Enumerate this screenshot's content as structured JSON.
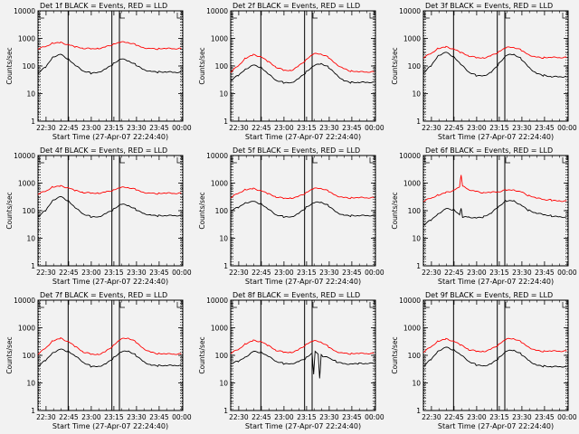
{
  "figure": {
    "title_template": "Det {det}f BLACK = Events, RED = LLD",
    "xlabel": "Start Time (27-Apr-07 22:24:40)",
    "ylabel": "Counts/sec",
    "yticks": [
      "10000",
      "1000",
      "100",
      "10",
      "1"
    ],
    "xticks": [
      "22:30",
      "22:45",
      "23:00",
      "23:15",
      "23:30",
      "23:45",
      "00:00"
    ],
    "colors": {
      "events": "#000000",
      "lld": "#ff0000",
      "background": "#f2f2f2"
    }
  },
  "chart_data": [
    {
      "type": "line",
      "detector": "1",
      "title": "Det 1f BLACK = Events, RED = LLD",
      "xlabel": "Start Time (27-Apr-07 22:24:40)",
      "ylabel": "Counts/sec",
      "yscale": "log",
      "ylim": [
        1,
        10000
      ],
      "xlim_minutes_after_22_24_40": [
        0,
        96
      ],
      "vertical_markers_minutes": [
        20,
        49,
        54
      ],
      "series": [
        {
          "name": "Events",
          "color": "#000000",
          "x": [
            0,
            5,
            10,
            15,
            20,
            25,
            30,
            35,
            40,
            45,
            50,
            55,
            60,
            65,
            70,
            75,
            80,
            85,
            90,
            95
          ],
          "y": [
            55,
            90,
            220,
            270,
            180,
            100,
            65,
            55,
            60,
            80,
            120,
            180,
            150,
            110,
            75,
            65,
            60,
            60,
            58,
            58
          ]
        },
        {
          "name": "LLD",
          "color": "#ff0000",
          "x": [
            0,
            5,
            10,
            15,
            20,
            25,
            30,
            35,
            40,
            45,
            50,
            55,
            60,
            65,
            70,
            75,
            80,
            85,
            90,
            95
          ],
          "y": [
            420,
            500,
            700,
            720,
            600,
            480,
            430,
            420,
            440,
            500,
            620,
            720,
            700,
            580,
            470,
            430,
            420,
            420,
            420,
            420
          ]
        }
      ]
    },
    {
      "type": "line",
      "detector": "2",
      "title": "Det 2f BLACK = Events, RED = LLD",
      "xlabel": "Start Time (27-Apr-07 22:24:40)",
      "ylabel": "Counts/sec",
      "yscale": "log",
      "ylim": [
        1,
        10000
      ],
      "xlim_minutes_after_22_24_40": [
        0,
        96
      ],
      "vertical_markers_minutes": [
        20,
        49,
        54
      ],
      "series": [
        {
          "name": "Events",
          "color": "#000000",
          "x": [
            0,
            5,
            10,
            15,
            20,
            25,
            30,
            35,
            40,
            45,
            50,
            55,
            60,
            65,
            70,
            75,
            80,
            85,
            90,
            95
          ],
          "y": [
            30,
            45,
            80,
            110,
            90,
            50,
            30,
            25,
            25,
            35,
            60,
            100,
            120,
            90,
            50,
            30,
            25,
            25,
            25,
            25
          ]
        },
        {
          "name": "LLD",
          "color": "#ff0000",
          "x": [
            0,
            5,
            10,
            15,
            20,
            25,
            30,
            35,
            40,
            45,
            50,
            55,
            60,
            65,
            70,
            75,
            80,
            85,
            90,
            95
          ],
          "y": [
            60,
            100,
            200,
            260,
            220,
            140,
            90,
            70,
            70,
            100,
            170,
            270,
            270,
            200,
            120,
            80,
            65,
            60,
            60,
            60
          ]
        }
      ]
    },
    {
      "type": "line",
      "detector": "3",
      "title": "Det 3f BLACK = Events, RED = LLD",
      "xlabel": "Start Time (27-Apr-07 22:24:40)",
      "ylabel": "Counts/sec",
      "yscale": "log",
      "ylim": [
        1,
        10000
      ],
      "xlim_minutes_after_22_24_40": [
        0,
        96
      ],
      "vertical_markers_minutes": [
        20,
        49,
        54
      ],
      "series": [
        {
          "name": "Events",
          "color": "#000000",
          "x": [
            0,
            5,
            10,
            15,
            20,
            25,
            30,
            35,
            40,
            45,
            50,
            55,
            60,
            65,
            70,
            75,
            80,
            85,
            90,
            95
          ],
          "y": [
            55,
            100,
            250,
            320,
            220,
            110,
            60,
            45,
            45,
            60,
            120,
            240,
            260,
            180,
            90,
            55,
            45,
            40,
            40,
            40
          ]
        },
        {
          "name": "LLD",
          "color": "#ff0000",
          "x": [
            0,
            5,
            10,
            15,
            20,
            25,
            30,
            35,
            40,
            45,
            50,
            55,
            60,
            65,
            70,
            75,
            80,
            85,
            90,
            95
          ],
          "y": [
            200,
            280,
            450,
            500,
            420,
            300,
            230,
            200,
            200,
            240,
            330,
            460,
            470,
            370,
            260,
            210,
            200,
            200,
            200,
            200
          ]
        }
      ]
    },
    {
      "type": "line",
      "detector": "4",
      "title": "Det 4f BLACK = Events, RED = LLD",
      "xlabel": "Start Time (27-Apr-07 22:24:40)",
      "ylabel": "Counts/sec",
      "yscale": "log",
      "ylim": [
        1,
        10000
      ],
      "xlim_minutes_after_22_24_40": [
        0,
        96
      ],
      "vertical_markers_minutes": [
        20,
        49,
        54
      ],
      "series": [
        {
          "name": "Events",
          "color": "#000000",
          "x": [
            0,
            5,
            10,
            15,
            20,
            25,
            30,
            35,
            40,
            45,
            50,
            55,
            60,
            65,
            70,
            75,
            80,
            85,
            90,
            95
          ],
          "y": [
            60,
            100,
            250,
            330,
            230,
            120,
            75,
            60,
            60,
            80,
            110,
            170,
            150,
            110,
            80,
            70,
            65,
            65,
            65,
            65
          ]
        },
        {
          "name": "LLD",
          "color": "#ff0000",
          "x": [
            0,
            5,
            10,
            15,
            20,
            25,
            30,
            35,
            40,
            45,
            50,
            55,
            60,
            65,
            70,
            75,
            80,
            85,
            90,
            95
          ],
          "y": [
            400,
            500,
            750,
            800,
            680,
            520,
            450,
            430,
            440,
            480,
            560,
            680,
            680,
            580,
            470,
            430,
            420,
            420,
            420,
            420
          ]
        }
      ]
    },
    {
      "type": "line",
      "detector": "5",
      "title": "Det 5f BLACK = Events, RED = LLD",
      "xlabel": "Start Time (27-Apr-07 22:24:40)",
      "ylabel": "Counts/sec",
      "yscale": "log",
      "ylim": [
        1,
        10000
      ],
      "xlim_minutes_after_22_24_40": [
        0,
        96
      ],
      "vertical_markers_minutes": [
        20,
        49,
        54
      ],
      "series": [
        {
          "name": "Events",
          "color": "#000000",
          "x": [
            0,
            5,
            10,
            15,
            20,
            25,
            30,
            35,
            40,
            45,
            50,
            55,
            60,
            65,
            70,
            75,
            80,
            85,
            90,
            95
          ],
          "y": [
            100,
            130,
            200,
            220,
            180,
            110,
            70,
            60,
            60,
            80,
            130,
            190,
            200,
            150,
            90,
            70,
            65,
            65,
            65,
            65
          ]
        },
        {
          "name": "LLD",
          "color": "#ff0000",
          "x": [
            0,
            5,
            10,
            15,
            20,
            25,
            30,
            35,
            40,
            45,
            50,
            55,
            60,
            65,
            70,
            75,
            80,
            85,
            90,
            95
          ],
          "y": [
            300,
            420,
            600,
            640,
            540,
            400,
            310,
            280,
            290,
            330,
            450,
            620,
            640,
            500,
            360,
            300,
            290,
            290,
            290,
            290
          ]
        }
      ]
    },
    {
      "type": "line",
      "detector": "6",
      "title": "Det 6f BLACK = Events, RED = LLD",
      "xlabel": "Start Time (27-Apr-07 22:24:40)",
      "ylabel": "Counts/sec",
      "yscale": "log",
      "ylim": [
        1,
        10000
      ],
      "xlim_minutes_after_22_24_40": [
        0,
        96
      ],
      "vertical_markers_minutes": [
        20,
        49,
        54
      ],
      "series": [
        {
          "name": "Events",
          "color": "#000000",
          "x": [
            0,
            5,
            10,
            15,
            20,
            24,
            25,
            26,
            30,
            35,
            40,
            45,
            50,
            55,
            60,
            65,
            70,
            75,
            80,
            85,
            90,
            95
          ],
          "y": [
            30,
            45,
            80,
            120,
            110,
            70,
            120,
            60,
            60,
            55,
            60,
            80,
            140,
            230,
            230,
            160,
            100,
            80,
            70,
            65,
            60,
            60
          ]
        },
        {
          "name": "LLD",
          "color": "#ff0000",
          "x": [
            0,
            5,
            10,
            15,
            20,
            24,
            25,
            26,
            30,
            35,
            40,
            45,
            50,
            55,
            60,
            65,
            70,
            75,
            80,
            85,
            90,
            95
          ],
          "y": [
            220,
            280,
            380,
            460,
            550,
            700,
            2000,
            800,
            600,
            500,
            450,
            450,
            480,
            560,
            580,
            480,
            350,
            280,
            250,
            240,
            230,
            230
          ]
        }
      ]
    },
    {
      "type": "line",
      "detector": "7",
      "title": "Det 7f BLACK = Events, RED = LLD",
      "xlabel": "Start Time (27-Apr-07 22:24:40)",
      "ylabel": "Counts/sec",
      "yscale": "log",
      "ylim": [
        1,
        10000
      ],
      "xlim_minutes_after_22_24_40": [
        0,
        96
      ],
      "vertical_markers_minutes": [
        20,
        49,
        54
      ],
      "series": [
        {
          "name": "Events",
          "color": "#000000",
          "x": [
            0,
            5,
            10,
            15,
            20,
            25,
            30,
            35,
            40,
            45,
            50,
            55,
            60,
            65,
            70,
            75,
            80,
            85,
            90,
            95
          ],
          "y": [
            40,
            65,
            130,
            170,
            140,
            90,
            55,
            40,
            40,
            50,
            80,
            130,
            140,
            100,
            60,
            45,
            42,
            42,
            42,
            42
          ]
        },
        {
          "name": "LLD",
          "color": "#ff0000",
          "x": [
            0,
            5,
            10,
            15,
            20,
            25,
            30,
            35,
            40,
            45,
            50,
            55,
            60,
            65,
            70,
            75,
            80,
            85,
            90,
            95
          ],
          "y": [
            110,
            180,
            350,
            420,
            320,
            200,
            130,
            110,
            110,
            140,
            230,
            380,
            420,
            300,
            180,
            130,
            115,
            110,
            110,
            110
          ]
        }
      ]
    },
    {
      "type": "line",
      "detector": "8",
      "title": "Det 8f BLACK = Events, RED = LLD",
      "xlabel": "Start Time (27-Apr-07 22:24:40)",
      "ylabel": "Counts/sec",
      "yscale": "log",
      "ylim": [
        1,
        10000
      ],
      "xlim_minutes_after_22_24_40": [
        0,
        96
      ],
      "vertical_markers_minutes": [
        20,
        49,
        54
      ],
      "series": [
        {
          "name": "Events",
          "color": "#000000",
          "x": [
            0,
            5,
            10,
            15,
            20,
            25,
            30,
            35,
            40,
            45,
            50,
            54,
            55,
            56,
            58,
            59,
            60,
            61,
            65,
            70,
            75,
            80,
            85,
            90,
            95
          ],
          "y": [
            50,
            60,
            90,
            140,
            130,
            90,
            60,
            50,
            50,
            60,
            80,
            120,
            20,
            150,
            110,
            15,
            100,
            90,
            80,
            60,
            50,
            50,
            50,
            50,
            50
          ]
        },
        {
          "name": "LLD",
          "color": "#ff0000",
          "x": [
            0,
            5,
            10,
            15,
            20,
            25,
            30,
            35,
            40,
            45,
            50,
            55,
            60,
            65,
            70,
            75,
            80,
            85,
            90,
            95
          ],
          "y": [
            120,
            160,
            270,
            350,
            320,
            220,
            150,
            130,
            130,
            160,
            250,
            330,
            300,
            200,
            140,
            120,
            115,
            115,
            115,
            115
          ]
        }
      ]
    },
    {
      "type": "line",
      "detector": "9",
      "title": "Det 9f BLACK = Events, RED = LLD",
      "xlabel": "Start Time (27-Apr-07 22:24:40)",
      "ylabel": "Counts/sec",
      "yscale": "log",
      "ylim": [
        1,
        10000
      ],
      "xlim_minutes_after_22_24_40": [
        0,
        96
      ],
      "vertical_markers_minutes": [
        20,
        49,
        54
      ],
      "series": [
        {
          "name": "Events",
          "color": "#000000",
          "x": [
            0,
            5,
            10,
            15,
            20,
            25,
            30,
            35,
            40,
            45,
            50,
            55,
            60,
            65,
            70,
            75,
            80,
            85,
            90,
            95
          ],
          "y": [
            40,
            70,
            150,
            200,
            160,
            100,
            60,
            45,
            42,
            50,
            80,
            140,
            150,
            110,
            65,
            45,
            40,
            38,
            38,
            38
          ]
        },
        {
          "name": "LLD",
          "color": "#ff0000",
          "x": [
            0,
            5,
            10,
            15,
            20,
            25,
            30,
            35,
            40,
            45,
            50,
            55,
            60,
            65,
            70,
            75,
            80,
            85,
            90,
            95
          ],
          "y": [
            130,
            200,
            340,
            400,
            330,
            230,
            160,
            140,
            140,
            170,
            250,
            380,
            400,
            300,
            200,
            150,
            140,
            140,
            140,
            140
          ]
        }
      ]
    }
  ]
}
